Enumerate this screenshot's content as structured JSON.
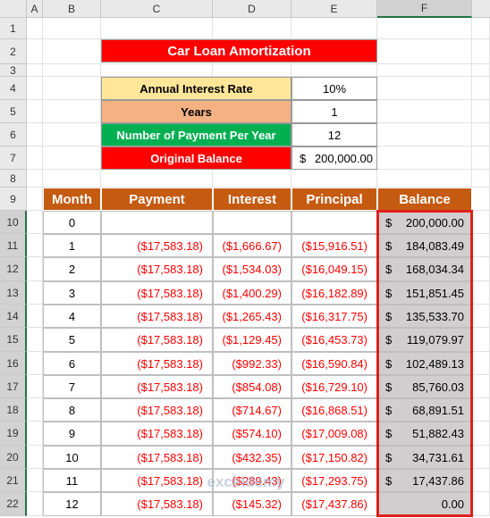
{
  "column_headers": [
    "A",
    "B",
    "C",
    "D",
    "E",
    "F"
  ],
  "row_headers": [
    "1",
    "2",
    "3",
    "4",
    "5",
    "6",
    "7",
    "8",
    "9",
    "10",
    "11",
    "12",
    "13",
    "14",
    "15",
    "16",
    "17",
    "18",
    "19",
    "20",
    "21",
    "22"
  ],
  "title": "Car Loan Amortization",
  "inputs": [
    {
      "label": "Annual Interest Rate",
      "value": "10%"
    },
    {
      "label": "Years",
      "value": "1"
    },
    {
      "label": "Number of Payment Per Year",
      "value": "12"
    },
    {
      "label": "Original Balance",
      "currency": "$",
      "value": "200,000.00"
    }
  ],
  "table": {
    "headers": [
      "Month",
      "Payment",
      "Interest",
      "Principal",
      "Balance"
    ],
    "rows": [
      {
        "month": "0",
        "currency": "$",
        "balance": "200,000.00"
      },
      {
        "month": "1",
        "payment": "($17,583.18)",
        "interest": "($1,666.67)",
        "principal": "($15,916.51)",
        "currency": "$",
        "balance": "184,083.49"
      },
      {
        "month": "2",
        "payment": "($17,583.18)",
        "interest": "($1,534.03)",
        "principal": "($16,049.15)",
        "currency": "$",
        "balance": "168,034.34"
      },
      {
        "month": "3",
        "payment": "($17,583.18)",
        "interest": "($1,400.29)",
        "principal": "($16,182.89)",
        "currency": "$",
        "balance": "151,851.45"
      },
      {
        "month": "4",
        "payment": "($17,583.18)",
        "interest": "($1,265.43)",
        "principal": "($16,317.75)",
        "currency": "$",
        "balance": "135,533.70"
      },
      {
        "month": "5",
        "payment": "($17,583.18)",
        "interest": "($1,129.45)",
        "principal": "($16,453.73)",
        "currency": "$",
        "balance": "119,079.97"
      },
      {
        "month": "6",
        "payment": "($17,583.18)",
        "interest": "($992.33)",
        "principal": "($16,590.84)",
        "currency": "$",
        "balance": "102,489.13"
      },
      {
        "month": "7",
        "payment": "($17,583.18)",
        "interest": "($854.08)",
        "principal": "($16,729.10)",
        "currency": "$",
        "balance": "85,760.03"
      },
      {
        "month": "8",
        "payment": "($17,583.18)",
        "interest": "($714.67)",
        "principal": "($16,868.51)",
        "currency": "$",
        "balance": "68,891.51"
      },
      {
        "month": "9",
        "payment": "($17,583.18)",
        "interest": "($574.10)",
        "principal": "($17,009.08)",
        "currency": "$",
        "balance": "51,882.43"
      },
      {
        "month": "10",
        "payment": "($17,583.18)",
        "interest": "($432.35)",
        "principal": "($17,150.82)",
        "currency": "$",
        "balance": "34,731.61"
      },
      {
        "month": "11",
        "payment": "($17,583.18)",
        "interest": "($289.43)",
        "principal": "($17,293.75)",
        "currency": "$",
        "balance": "17,437.86"
      },
      {
        "month": "12",
        "payment": "($17,583.18)",
        "interest": "($145.32)",
        "principal": "($17,437.86)",
        "balance": "0.00"
      }
    ]
  },
  "watermark": "exceldemy"
}
